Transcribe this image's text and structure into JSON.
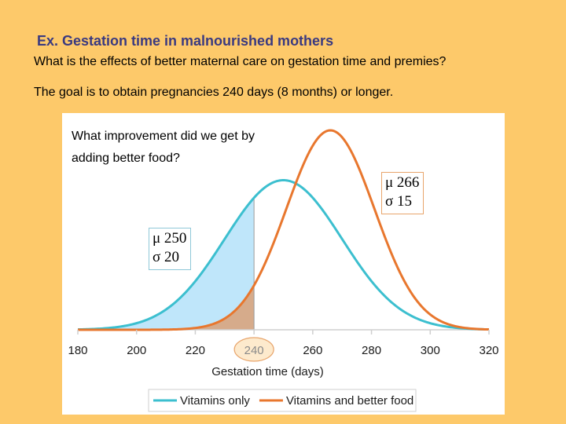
{
  "slide": {
    "title": "Ex. Gestation time in malnourished mothers",
    "line1": "What is the effects of better maternal care on gestation time and premies?",
    "line2": "The goal is to obtain pregnancies 240 days (8 months) or longer."
  },
  "panel": {
    "question": "What improvement did we get by adding better food?"
  },
  "annotations": {
    "vitamins": {
      "mu": "μ 250",
      "sigma": "σ 20"
    },
    "food": {
      "mu": "μ 266",
      "sigma": "σ 15"
    }
  },
  "chart_data": {
    "type": "line",
    "xlabel": "Gestation time (days)",
    "ylabel": "",
    "xlim": [
      180,
      320
    ],
    "xticks": [
      180,
      200,
      220,
      240,
      260,
      280,
      300,
      320
    ],
    "highlight_tick": 240,
    "shade_below": 240,
    "grid": false,
    "legend_position": "bottom",
    "series": [
      {
        "name": "Vitamins only",
        "distribution": "normal",
        "mean": 250,
        "sd": 20,
        "color": "#3cbfcf",
        "shade_color": "#bfe6fa"
      },
      {
        "name": "Vitamins and better food",
        "distribution": "normal",
        "mean": 266,
        "sd": 15,
        "color": "#e8772e",
        "shade_color": "#d6ab8b"
      }
    ]
  }
}
